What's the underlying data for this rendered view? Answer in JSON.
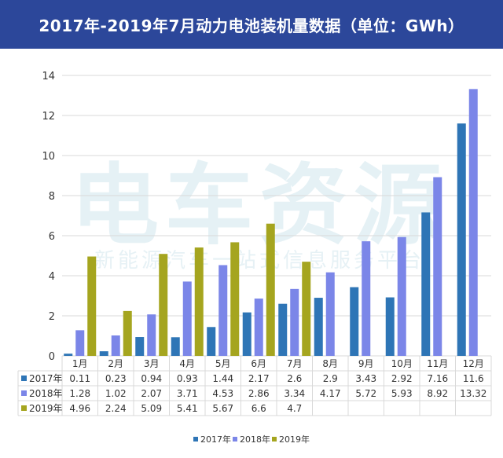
{
  "title": "2017年-2019年7月动力电池装机量数据（单位：GWh）",
  "watermark": {
    "brand": "电车资源",
    "slogan": "新能源汽车一站式信息服务平台"
  },
  "colors": {
    "title_bg": "#2c479a",
    "series_2017": "#2e75b6",
    "series_2018": "#7b86e8",
    "series_2019": "#a5a51f",
    "grid": "#d9d9d9",
    "axis_text": "#333333"
  },
  "chart_data": {
    "type": "bar",
    "title": "2017年-2019年7月动力电池装机量数据（单位：GWh）",
    "categories": [
      "1月",
      "2月",
      "3月",
      "4月",
      "5月",
      "6月",
      "7月",
      "8月",
      "9月",
      "10月",
      "11月",
      "12月"
    ],
    "series": [
      {
        "name": "2017年",
        "values": [
          0.11,
          0.23,
          0.94,
          0.93,
          1.44,
          2.17,
          2.6,
          2.9,
          3.43,
          2.92,
          7.16,
          11.6
        ]
      },
      {
        "name": "2018年",
        "values": [
          1.28,
          1.02,
          2.07,
          3.71,
          4.53,
          2.86,
          3.34,
          4.17,
          5.72,
          5.93,
          8.92,
          13.32
        ]
      },
      {
        "name": "2019年",
        "values": [
          4.96,
          2.24,
          5.09,
          5.41,
          5.67,
          6.6,
          4.7,
          null,
          null,
          null,
          null,
          null
        ]
      }
    ],
    "ylim": [
      0,
      14
    ],
    "yticks": [
      0,
      2,
      4,
      6,
      8,
      10,
      12,
      14
    ],
    "xlabel": "",
    "ylabel": "",
    "grid": true,
    "legend": "bottom-center",
    "data_table": true
  }
}
